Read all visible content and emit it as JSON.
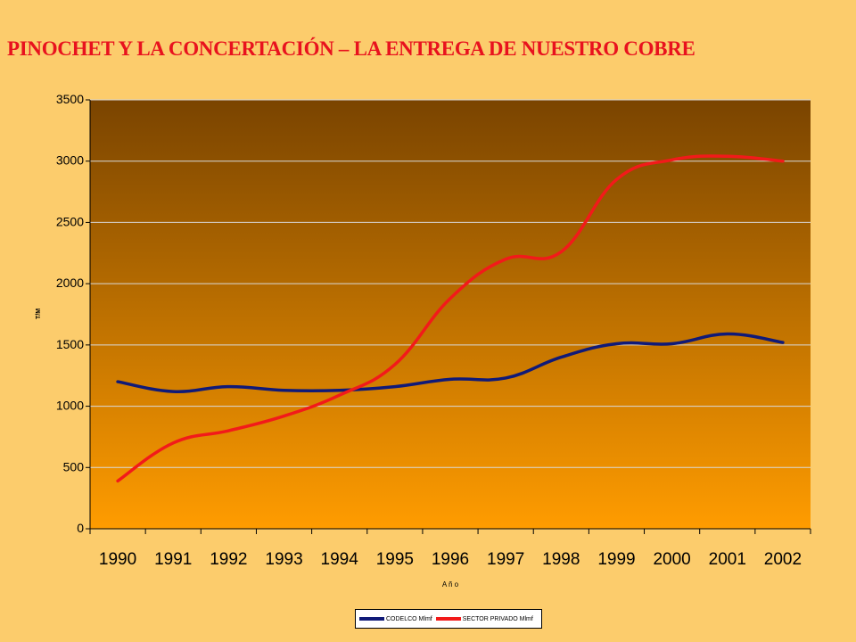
{
  "title": "PINOCHET Y LA CONCERTACIÓN – LA ENTREGA DE NUESTRO COBRE",
  "colors": {
    "background": "#fccc6c",
    "title": "#e8121e",
    "plot_top": "#7a4400",
    "plot_bottom": "#ff9c00",
    "codelco": "#101a78",
    "privado": "#f21a1a"
  },
  "chart_data": {
    "type": "line",
    "title": "",
    "xlabel": "A ñ o",
    "ylabel": "T/M",
    "ylim": [
      0,
      3500
    ],
    "yticks": [
      0,
      500,
      1000,
      1500,
      2000,
      2500,
      3000,
      3500
    ],
    "grid": true,
    "legend_position": "bottom",
    "categories": [
      "1990",
      "1991",
      "1992",
      "1993",
      "1994",
      "1995",
      "1996",
      "1997",
      "1998",
      "1999",
      "2000",
      "2001",
      "2002"
    ],
    "series": [
      {
        "name": "CODELCO Mlmf",
        "color": "#101a78",
        "values": [
          1200,
          1120,
          1160,
          1130,
          1130,
          1160,
          1220,
          1230,
          1400,
          1510,
          1510,
          1590,
          1520
        ]
      },
      {
        "name": "SECTOR PRIVADO Mlmf",
        "color": "#f21a1a",
        "values": [
          390,
          700,
          800,
          920,
          1090,
          1340,
          1880,
          2200,
          2260,
          2850,
          3010,
          3040,
          3000
        ]
      }
    ]
  }
}
